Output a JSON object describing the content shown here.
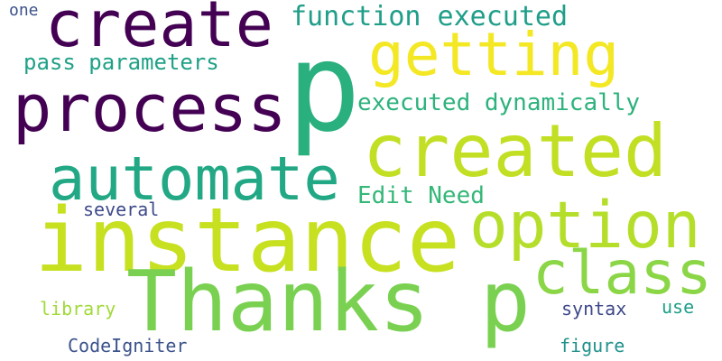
{
  "words": [
    {
      "id": "p",
      "text": "p",
      "color": "#2ab07f"
    },
    {
      "id": "create",
      "text": "create",
      "color": "#440154"
    },
    {
      "id": "getting",
      "text": "getting",
      "color": "#f3e823"
    },
    {
      "id": "process",
      "text": "process",
      "color": "#440154"
    },
    {
      "id": "created",
      "text": "created",
      "color": "#c2df23"
    },
    {
      "id": "automate",
      "text": "automate",
      "color": "#22a884"
    },
    {
      "id": "instance",
      "text": "instance",
      "color": "#c7e020"
    },
    {
      "id": "option",
      "text": "option",
      "color": "#b5de2b"
    },
    {
      "id": "class",
      "text": "class",
      "color": "#8bd646"
    },
    {
      "id": "thanks-p",
      "text": "Thanks p",
      "color": "#7ad151"
    },
    {
      "id": "function-executed",
      "text": "function executed",
      "color": "#1f9e89"
    },
    {
      "id": "pass-parameters",
      "text": "pass parameters",
      "color": "#1fa187"
    },
    {
      "id": "executed-dynamically",
      "text": "executed dynamically",
      "color": "#2db27d"
    },
    {
      "id": "edit-need",
      "text": "Edit Need",
      "color": "#35b779"
    },
    {
      "id": "several",
      "text": "several",
      "color": "#3e4989"
    },
    {
      "id": "one",
      "text": "one",
      "color": "#3b528b"
    },
    {
      "id": "library",
      "text": "library",
      "color": "#a0da39"
    },
    {
      "id": "syntax",
      "text": "syntax",
      "color": "#3e4989"
    },
    {
      "id": "use",
      "text": "use",
      "color": "#1f9e89"
    },
    {
      "id": "codeigniter",
      "text": "CodeIgniter",
      "color": "#3b528b"
    },
    {
      "id": "figure",
      "text": "figure",
      "color": "#21918c"
    }
  ]
}
